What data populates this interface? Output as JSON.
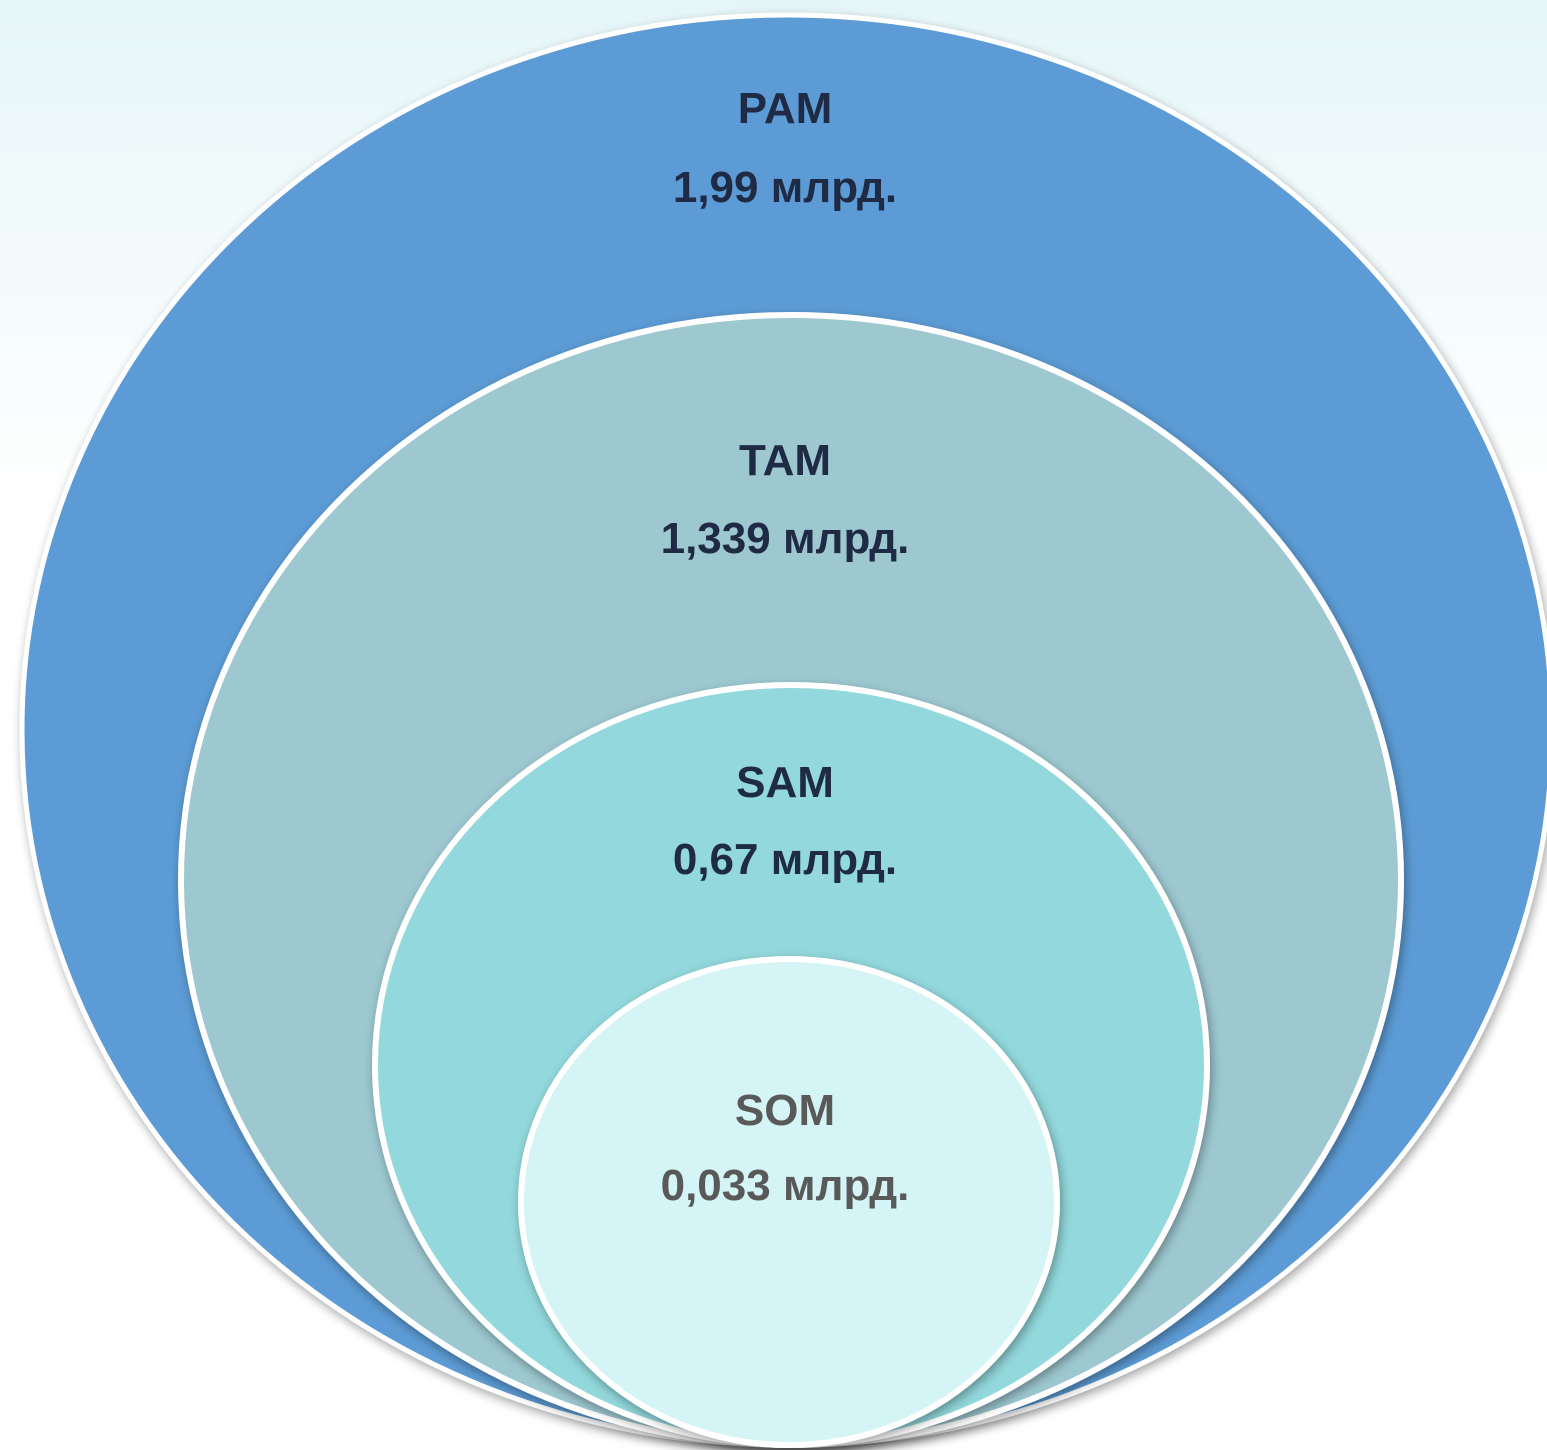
{
  "colors": {
    "outer": "#5b9bd5",
    "second": "#9dc8d0",
    "third": "#92d8dc",
    "inner": "#d4f4f5",
    "ring": "#ffffff",
    "text_dark": "#1f2a44",
    "text_inner": "#595959"
  },
  "markets": [
    {
      "name": "PAM",
      "value": "1,99 млрд."
    },
    {
      "name": "TAM",
      "value": "1,339 млрд."
    },
    {
      "name": "SAM",
      "value": "0,67 млрд."
    },
    {
      "name": "SOM",
      "value": "0,033 млрд."
    }
  ]
}
